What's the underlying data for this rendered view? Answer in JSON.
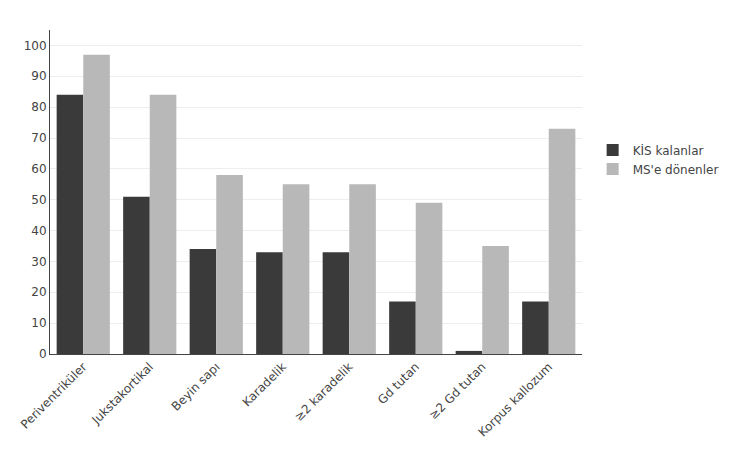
{
  "chart_data": {
    "type": "bar",
    "categories": [
      "Periventriküler",
      "Jukstakortikal",
      "Beyin sapı",
      "Karadelik",
      "≥2 karadelik",
      "Gd tutan",
      "≥2 Gd tutan",
      "Korpus kallozum"
    ],
    "series": [
      {
        "name": "KİS kalanlar",
        "color": "#3a3a3a",
        "values": [
          84,
          51,
          34,
          33,
          33,
          17,
          1,
          17
        ]
      },
      {
        "name": "MS'e dönenler",
        "color": "#b8b8b8",
        "values": [
          97,
          84,
          58,
          55,
          55,
          49,
          35,
          73
        ]
      }
    ],
    "ylim": [
      0,
      105
    ],
    "yticks": [
      0,
      10,
      20,
      30,
      40,
      50,
      60,
      70,
      80,
      90,
      100
    ],
    "grid": true,
    "legend": "right"
  }
}
